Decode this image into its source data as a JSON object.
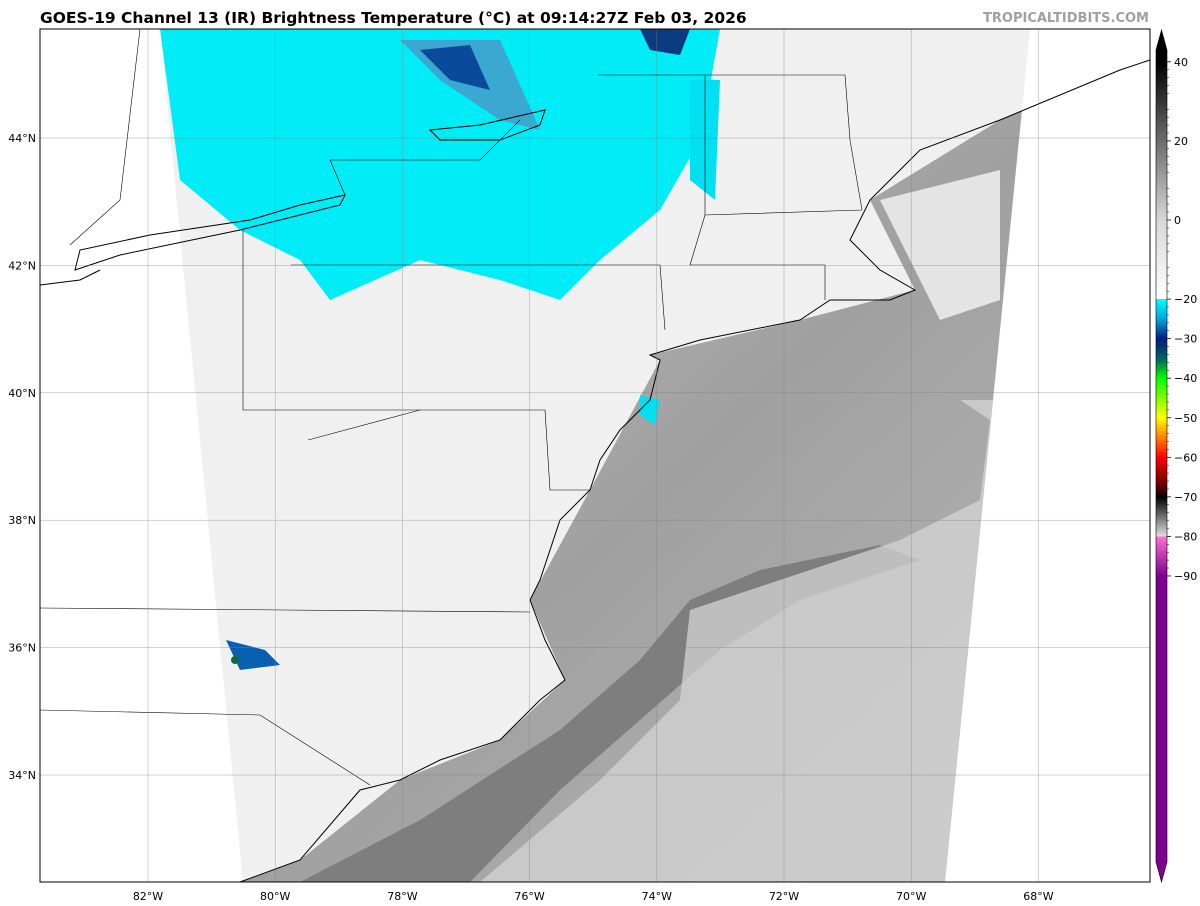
{
  "header": {
    "title": "GOES-19 Channel 13 (IR) Brightness Temperature (°C) at 09:14:27Z Feb 03, 2026",
    "watermark": "TROPICALTIDBITS.COM"
  },
  "map": {
    "lat_labels": [
      {
        "lat": 44,
        "label": "44°N"
      },
      {
        "lat": 42,
        "label": "42°N"
      },
      {
        "lat": 40,
        "label": "40°N"
      },
      {
        "lat": 38,
        "label": "38°N"
      },
      {
        "lat": 36,
        "label": "36°N"
      },
      {
        "lat": 34,
        "label": "34°N"
      }
    ],
    "lon_labels": [
      {
        "lon": -82,
        "label": "82°W"
      },
      {
        "lon": -80,
        "label": "80°W"
      },
      {
        "lon": -78,
        "label": "78°W"
      },
      {
        "lon": -76,
        "label": "76°W"
      },
      {
        "lon": -74,
        "label": "74°W"
      },
      {
        "lon": -72,
        "label": "72°W"
      },
      {
        "lon": -70,
        "label": "70°W"
      },
      {
        "lon": -68,
        "label": "68°W"
      }
    ],
    "colors": {
      "land_cloud": "#f2f2f2",
      "ocean": "#a8a8a8",
      "gulf_stream": "#7c7c7c",
      "cold_cloud": "#00e5f5",
      "deep_cloud": "#0a4a9a"
    }
  },
  "colorbar": {
    "ticks": [
      "40",
      "20",
      "0",
      "−20",
      "−30",
      "−40",
      "−50",
      "−60",
      "−70",
      "−80",
      "−90"
    ],
    "tick_values": [
      40,
      20,
      0,
      -20,
      -30,
      -40,
      -50,
      -60,
      -70,
      -80,
      -90
    ],
    "range": [
      -90,
      40
    ],
    "stops": [
      {
        "v": 40,
        "c": "#000000"
      },
      {
        "v": 0,
        "c": "#d8d8d8"
      },
      {
        "v": -20,
        "c": "#ffffff"
      },
      {
        "v": -20,
        "c": "#00ffff"
      },
      {
        "v": -25,
        "c": "#00a8d8"
      },
      {
        "v": -30,
        "c": "#001e80"
      },
      {
        "v": -35,
        "c": "#006060"
      },
      {
        "v": -40,
        "c": "#00ff00"
      },
      {
        "v": -50,
        "c": "#ffff00"
      },
      {
        "v": -55,
        "c": "#ff8000"
      },
      {
        "v": -60,
        "c": "#ff0000"
      },
      {
        "v": -68,
        "c": "#500000"
      },
      {
        "v": -70,
        "c": "#000000"
      },
      {
        "v": -80,
        "c": "#e0e0e0"
      },
      {
        "v": -80,
        "c": "#ff70d0"
      },
      {
        "v": -90,
        "c": "#800090"
      }
    ]
  }
}
